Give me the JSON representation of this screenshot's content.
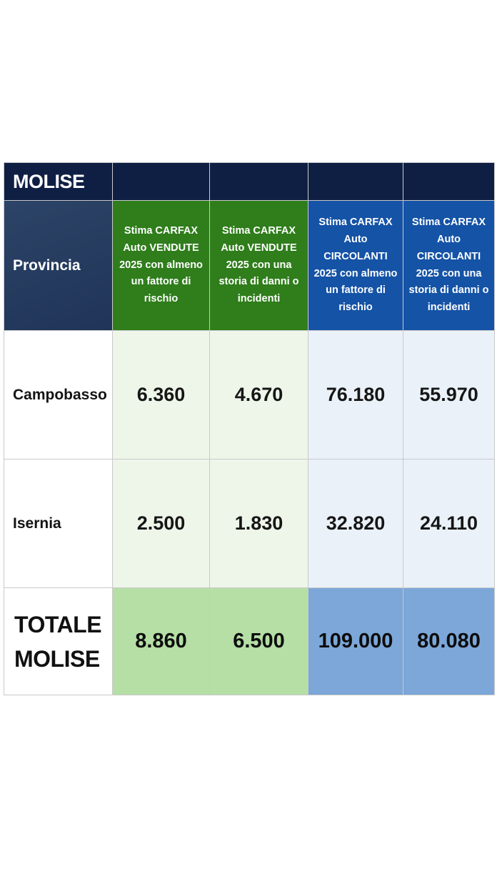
{
  "region_title": "MOLISE",
  "header": {
    "provincia": "Provincia",
    "columns": [
      "Stima CARFAX Auto VENDUTE 2025 con almeno un fattore di rischio",
      "Stima CARFAX Auto VENDUTE 2025 con una storia di danni o incidenti",
      "Stima CARFAX Auto CIRCOLANTI 2025 con almeno un fattore di rischio",
      "Stima CARFAX Auto CIRCOLANTI 2025 con una storia di danni o incidenti"
    ]
  },
  "rows": [
    {
      "name": "Campobasso",
      "values": [
        "6.360",
        "4.670",
        "76.180",
        "55.970"
      ]
    },
    {
      "name": "Isernia",
      "values": [
        "2.500",
        "1.830",
        "32.820",
        "24.110"
      ]
    }
  ],
  "total": {
    "name_line1": "TOTALE",
    "name_line2": "MOLISE",
    "values": [
      "8.860",
      "6.500",
      "109.000",
      "80.080"
    ]
  },
  "colors": {
    "title_bar": "#0f1f44",
    "header_provincia": "#243b5f",
    "header_green": "#2f7d1b",
    "header_blue": "#1553a6",
    "cell_green_light": "#eef6ea",
    "cell_blue_light": "#eaf1f9",
    "total_green": "#b5dfa5",
    "total_blue": "#7ca7d8"
  }
}
